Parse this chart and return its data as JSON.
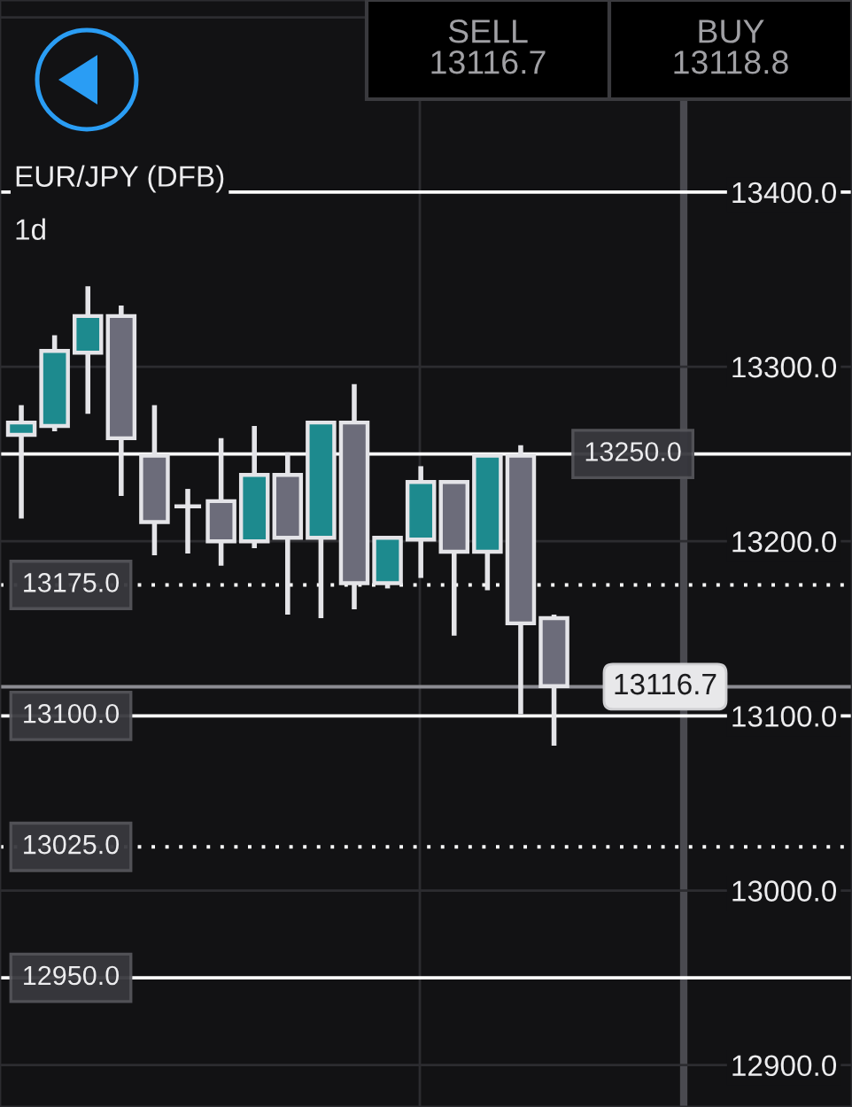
{
  "chart_data": {
    "type": "candlestick",
    "title": "EUR/JPY (DFB)",
    "subtitle": "1d",
    "categories": [
      null,
      null,
      null,
      null,
      null,
      null,
      null,
      null,
      null,
      null,
      null,
      null,
      null,
      null,
      null,
      null,
      null,
      null,
      null,
      null,
      null,
      null,
      null,
      null,
      null
    ],
    "ohlc": [
      [
        13261,
        13278,
        13213,
        13268
      ],
      [
        13266,
        13318,
        13263,
        13309
      ],
      [
        13308,
        13346,
        13273,
        13329
      ],
      [
        13329,
        13335,
        13226,
        13259
      ],
      [
        13249,
        13278,
        13192,
        13211
      ],
      [
        13220,
        13230,
        13193,
        13220
      ],
      [
        13223,
        13259,
        13186,
        13200
      ],
      [
        13200,
        13266,
        13196,
        13238
      ],
      [
        13238,
        13251,
        13158,
        13202
      ],
      [
        13202,
        13268,
        13156,
        13268
      ],
      [
        13268,
        13290,
        13161,
        13176
      ],
      [
        13176,
        13203,
        13173,
        13202
      ],
      [
        13201,
        13243,
        13179,
        13234
      ],
      [
        13234,
        13235,
        13146,
        13194
      ],
      [
        13194,
        13249,
        13172,
        13249
      ],
      [
        13249,
        13255,
        13101,
        13153
      ],
      [
        13156,
        13158,
        13083,
        13117
      ],
      null,
      null,
      null,
      null,
      null,
      null,
      null,
      null
    ],
    "colors": [
      "#1d8a8e",
      "#1d8a8e",
      "#1d8a8e",
      "#6c6c7a",
      "#6c6c7a",
      null,
      "#6c6c7a",
      "#1d8a8e",
      "#6c6c7a",
      "#1d8a8e",
      "#6c6c7a",
      "#1d8a8e",
      "#1d8a8e",
      "#6c6c7a",
      "#1d8a8e",
      "#6c6c7a",
      "#6c6c7a",
      null,
      null,
      null,
      null,
      null,
      null,
      null,
      null
    ],
    "ylim": [
      12876,
      13510
    ],
    "yticks": [
      {
        "value": 12900,
        "label": "12900.0"
      },
      {
        "value": 13000,
        "label": "13000.0"
      },
      {
        "value": 13100,
        "label": "13100.0"
      },
      {
        "value": 13200,
        "label": "13200.0"
      },
      {
        "value": 13300,
        "label": "13300.0"
      },
      {
        "value": 13400,
        "label": "13400.0"
      },
      {
        "value": 13500,
        "label": null
      }
    ],
    "grid": "y",
    "ref_lines": [
      {
        "axis": "y",
        "value": 13400,
        "color": "#ffffff",
        "line_style": "solid"
      },
      {
        "axis": "y",
        "value": 13250,
        "label": "13250.0",
        "color": "#ffffff",
        "line_style": "solid"
      },
      {
        "axis": "y",
        "value": 13175,
        "label": "13175.0",
        "color": "#ffffff",
        "line_style": "dotted"
      },
      {
        "axis": "y",
        "value": 13100,
        "label": "13100.0",
        "color": "#ffffff",
        "line_style": "solid"
      },
      {
        "axis": "y",
        "value": 13025,
        "label": "13025.0",
        "color": "#ffffff",
        "line_style": "dotted"
      },
      {
        "axis": "y",
        "value": 12950,
        "label": "12950.0",
        "color": "#ffffff",
        "line_style": "solid"
      },
      {
        "axis": "y",
        "value": 13116.7,
        "label": "13116.7",
        "color": "#8c8c92",
        "line_style": "solid"
      }
    ],
    "annotations": [
      "SELL\n13116.7",
      "BUY\n13118.8"
    ]
  }
}
